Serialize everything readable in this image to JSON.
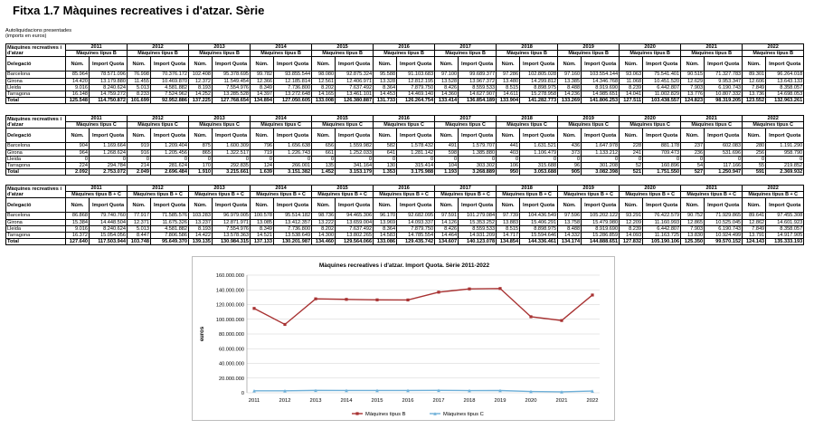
{
  "title": "Fitxa 1.7 Màquines recreatives i d'atzar. Sèrie",
  "subtitle_lines": [
    "Autoliquidacions presentades",
    "(imports en euros)"
  ],
  "years": [
    "2011",
    "2012",
    "2013",
    "2014",
    "2015",
    "2016",
    "2017",
    "2018",
    "2019",
    "2020",
    "2021",
    "2022"
  ],
  "tables": [
    {
      "header_label": "Màquines recreatives i d'atzar",
      "type_label": "Màquines tipus B",
      "delegacio_label": "Delegació",
      "num_label": "Núm.",
      "import_label": "Import Quota",
      "rows": [
        {
          "name": "Barcelona",
          "values": [
            "85.964",
            "78.571.096",
            "76.998",
            "70.376.172",
            "102.408",
            "95.378.695",
            "99.782",
            "93.855.544",
            "98.080",
            "92.875.324",
            "95.588",
            "91.103.683",
            "97.100",
            "99.689.377",
            "97.286",
            "102.805.028",
            "97.160",
            "103.554.144",
            "93.063",
            "75.541.401",
            "90.515",
            "71.327.783",
            "89.301",
            "96.264.018"
          ]
        },
        {
          "name": "Girona",
          "values": [
            "14.420",
            "13.179.880",
            "11.455",
            "10.469.870",
            "12.372",
            "11.549.454",
            "12.366",
            "12.185.814",
            "12.561",
            "12.406.971",
            "13.328",
            "12.812.195",
            "13.528",
            "13.967.372",
            "13.480",
            "14.299.812",
            "13.385",
            "14.346.768",
            "11.068",
            "10.451.520",
            "12.629",
            "9.953.347",
            "12.606",
            "13.643.133"
          ]
        },
        {
          "name": "Lleida",
          "values": [
            "9.016",
            "8.240.624",
            "5.013",
            "4.581.882",
            "8.193",
            "7.554.976",
            "8.349",
            "7.736.800",
            "8.202",
            "7.637.492",
            "8.364",
            "7.879.750",
            "8.426",
            "8.559.533",
            "8.515",
            "8.898.975",
            "8.488",
            "8.919.690",
            "8.239",
            "6.442.807",
            "7.903",
            "6.190.743",
            "7.849",
            "8.358.057"
          ]
        },
        {
          "name": "Tarragona",
          "values": [
            "16.148",
            "14.759.272",
            "8.233",
            "7.524.962",
            "14.252",
            "13.285.528",
            "14.397",
            "13.272.648",
            "14.165",
            "13.461.101",
            "14.453",
            "14.469.140",
            "14.360",
            "14.627.907",
            "14.611",
            "15.278.958",
            "14.236",
            "14.985.651",
            "14.041",
            "11.002.829",
            "13.776",
            "10.807.332",
            "13.736",
            "14.698.053"
          ]
        }
      ],
      "total": {
        "name": "Total",
        "values": [
          "125.548",
          "114.750.872",
          "101.699",
          "92.952.886",
          "137.225",
          "127.768.654",
          "134.894",
          "127.050.605",
          "133.008",
          "126.380.887",
          "131.733",
          "126.264.754",
          "133.414",
          "136.854.189",
          "133.904",
          "141.282.773",
          "133.269",
          "141.806.253",
          "127.511",
          "103.438.557",
          "124.823",
          "98.319.205",
          "123.552",
          "132.963.261"
        ]
      }
    },
    {
      "header_label": "Màquines recreatives i d'atzar",
      "type_label": "Màquines tipus C",
      "delegacio_label": "Delegació",
      "num_label": "Núm.",
      "import_label": "Import Quota",
      "rows": [
        {
          "name": "Barcelona",
          "values": [
            "904",
            "1.169.664",
            "919",
            "1.209.404",
            "875",
            "1.600.309",
            "796",
            "1.656.638",
            "656",
            "1.559.982",
            "582",
            "1.578.432",
            "491",
            "1.579.707",
            "441",
            "1.631.521",
            "436",
            "1.647.978",
            "228",
            "881.178",
            "237",
            "602.083",
            "280",
            "1.191.290"
          ]
        },
        {
          "name": "Girona",
          "values": [
            "964",
            "1.268.624",
            "916",
            "1.205.456",
            "865",
            "1.322.517",
            "719",
            "1.226.743",
            "661",
            "1.252.033",
            "641",
            "1.281.142",
            "598",
            "1.385.880",
            "403",
            "1.106.479",
            "373",
            "1.133.212",
            "241",
            "709.473",
            "236",
            "531.696",
            "256",
            "958.790"
          ]
        },
        {
          "name": "Lleida",
          "values": [
            "0",
            "0",
            "0",
            "0",
            "0",
            "0",
            "0",
            "0",
            "0",
            "0",
            "0",
            "0",
            "0",
            "0",
            "0",
            "0",
            "0",
            "0",
            "0",
            "0",
            "0",
            "0",
            "0",
            "0"
          ]
        },
        {
          "name": "Tarragona",
          "values": [
            "224",
            "294.784",
            "214",
            "281.624",
            "170",
            "292.835",
            "124",
            "266.001",
            "135",
            "341.164",
            "130",
            "315.414",
            "104",
            "303.302",
            "106",
            "315.688",
            "96",
            "301.208",
            "52",
            "160.896",
            "54",
            "117.166",
            "55",
            "219.852"
          ]
        }
      ],
      "total": {
        "name": "Total",
        "values": [
          "2.092",
          "2.753.072",
          "2.049",
          "2.696.484",
          "1.910",
          "3.215.661",
          "1.639",
          "3.151.382",
          "1.452",
          "3.153.179",
          "1.353",
          "3.175.988",
          "1.193",
          "3.268.889",
          "950",
          "3.053.688",
          "905",
          "3.082.398",
          "521",
          "1.751.550",
          "527",
          "1.250.947",
          "591",
          "2.369.932"
        ]
      }
    },
    {
      "header_label": "Màquines recreatives i d'atzar",
      "type_label": "Màquines tipus B + C",
      "delegacio_label": "Delegació",
      "num_label": "Núm.",
      "import_label": "Import Quota",
      "rows": [
        {
          "name": "Barcelona",
          "values": [
            "86.868",
            "79.740.760",
            "77.917",
            "71.585.576",
            "103.283",
            "96.979.005",
            "100.578",
            "95.514.182",
            "98.736",
            "94.465.306",
            "96.170",
            "92.682.095",
            "97.591",
            "101.279.084",
            "97.739",
            "104.436.549",
            "97.596",
            "105.202.122",
            "93.291",
            "76.422.579",
            "90.752",
            "71.929.865",
            "89.641",
            "97.455.308"
          ]
        },
        {
          "name": "Girona",
          "values": [
            "15.384",
            "14.448.504",
            "12.371",
            "11.675.326",
            "13.237",
            "12.871.971",
            "13.085",
            "13.412.357",
            "13.222",
            "13.659.004",
            "13.969",
            "14.093.337",
            "14.126",
            "15.353.252",
            "13.883",
            "15.406.291",
            "13.758",
            "15.479.980",
            "12.209",
            "11.160.993",
            "12.865",
            "10.525.045",
            "12.862",
            "14.601.923"
          ]
        },
        {
          "name": "Lleida",
          "values": [
            "9.016",
            "8.240.624",
            "5.013",
            "4.581.882",
            "8.193",
            "7.554.976",
            "8.349",
            "7.736.800",
            "8.202",
            "7.637.492",
            "8.364",
            "7.879.750",
            "8.426",
            "8.559.533",
            "8.515",
            "8.898.975",
            "8.488",
            "8.919.690",
            "8.239",
            "6.442.807",
            "7.903",
            "6.190.743",
            "7.849",
            "8.358.057"
          ]
        },
        {
          "name": "Tarragona",
          "values": [
            "16.372",
            "15.054.056",
            "8.447",
            "7.806.586",
            "14.422",
            "13.578.363",
            "14.521",
            "13.538.649",
            "14.300",
            "13.802.265",
            "14.583",
            "14.785.554",
            "14.464",
            "14.931.209",
            "14.717",
            "15.594.646",
            "14.332",
            "15.286.859",
            "14.093",
            "11.163.725",
            "13.830",
            "10.924.499",
            "13.791",
            "14.917.905"
          ]
        }
      ],
      "total": {
        "name": "Total",
        "values": [
          "127.640",
          "117.503.944",
          "103.748",
          "95.649.370",
          "139.135",
          "130.984.315",
          "137.133",
          "130.201.987",
          "134.460",
          "129.564.066",
          "133.086",
          "129.435.742",
          "134.607",
          "140.123.078",
          "134.854",
          "144.336.461",
          "134.174",
          "144.888.651",
          "127.832",
          "105.190.106",
          "125.350",
          "99.570.152",
          "124.143",
          "135.333.193"
        ]
      }
    }
  ],
  "chart_data": {
    "type": "line",
    "title": "Màquines recreatives i d'atzar. Import Quota. Sèrie 2011-2022",
    "xlabel": "",
    "ylabel": "euros",
    "x": [
      "2011",
      "2012",
      "2013",
      "2014",
      "2015",
      "2016",
      "2017",
      "2018",
      "2019",
      "2020",
      "2021",
      "2022"
    ],
    "ylim": [
      0,
      160000000
    ],
    "yticks": [
      "0",
      "20.000.000",
      "40.000.000",
      "60.000.000",
      "80.000.000",
      "100.000.000",
      "120.000.000",
      "140.000.000",
      "160.000.000"
    ],
    "ytick_values": [
      0,
      20000000,
      40000000,
      60000000,
      80000000,
      100000000,
      120000000,
      140000000,
      160000000
    ],
    "grid": "horizontal",
    "legend": "bottom",
    "series": [
      {
        "name": "Màquines tipus B",
        "color": "#a83232",
        "values": [
          114750872,
          92952886,
          127768654,
          127050605,
          126380887,
          126264754,
          136854189,
          141282773,
          141806253,
          103438557,
          98319205,
          132963261
        ]
      },
      {
        "name": "Màquines tipus C",
        "color": "#6fb0d8",
        "values": [
          2753072,
          2696484,
          3215661,
          3151382,
          3153179,
          3175988,
          3268889,
          3053688,
          3082398,
          1751550,
          1250947,
          2369932
        ]
      }
    ]
  }
}
